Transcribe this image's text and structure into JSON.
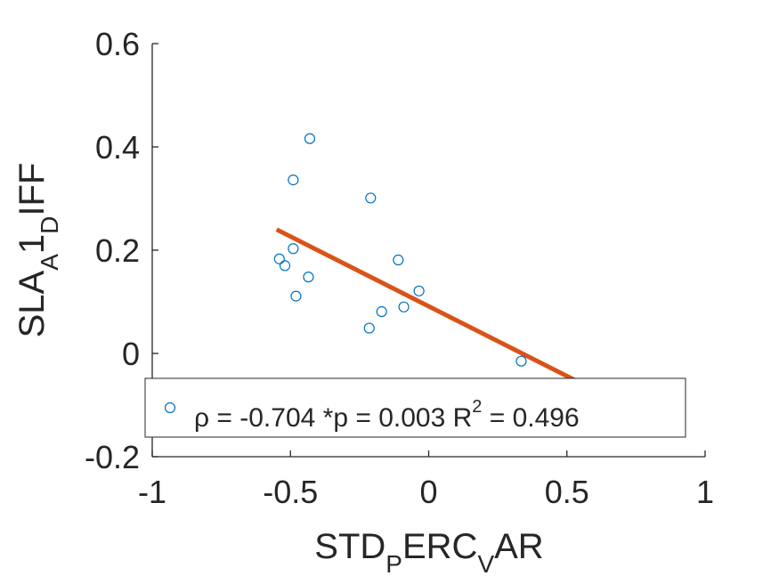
{
  "chart_data": {
    "type": "scatter",
    "xlabel": {
      "parts": [
        "STD",
        "P",
        "ERC",
        "V",
        "AR"
      ]
    },
    "ylabel": {
      "parts": [
        "SLA",
        "A",
        "1",
        "D",
        "IFF"
      ]
    },
    "xlim": [
      -1,
      1
    ],
    "ylim": [
      -0.2,
      0.6
    ],
    "xticks": [
      -1,
      -0.5,
      0,
      0.5,
      1
    ],
    "xtick_labels": [
      "-1",
      "-0.5",
      "0",
      "0.5",
      "1"
    ],
    "yticks": [
      -0.2,
      0,
      0.2,
      0.4,
      0.6
    ],
    "ytick_labels": [
      "-0.2",
      "0",
      "0.2",
      "0.4",
      "0.6"
    ],
    "grid": false,
    "series": [
      {
        "marker": "circle-open",
        "color": "#0072BD",
        "points": [
          {
            "x": -0.54,
            "y": 0.183
          },
          {
            "x": -0.52,
            "y": 0.17
          },
          {
            "x": -0.49,
            "y": 0.336
          },
          {
            "x": -0.49,
            "y": 0.203
          },
          {
            "x": -0.48,
            "y": 0.111
          },
          {
            "x": -0.43,
            "y": 0.416
          },
          {
            "x": -0.435,
            "y": 0.148
          },
          {
            "x": -0.21,
            "y": 0.301
          },
          {
            "x": -0.215,
            "y": 0.049
          },
          {
            "x": -0.17,
            "y": 0.081
          },
          {
            "x": -0.11,
            "y": 0.181
          },
          {
            "x": -0.09,
            "y": 0.09
          },
          {
            "x": -0.035,
            "y": 0.121
          },
          {
            "x": 0.335,
            "y": -0.015
          }
        ]
      },
      {
        "type": "line",
        "color": "#D95319",
        "points": [
          {
            "x": -0.55,
            "y": 0.24
          },
          {
            "x": 0.56,
            "y": -0.06
          }
        ]
      }
    ],
    "legend": {
      "placement": "bottom",
      "text_main": "ρ = -0.704 *p = 0.003 R",
      "text_sup": "2",
      "text_end": " = 0.496"
    }
  }
}
